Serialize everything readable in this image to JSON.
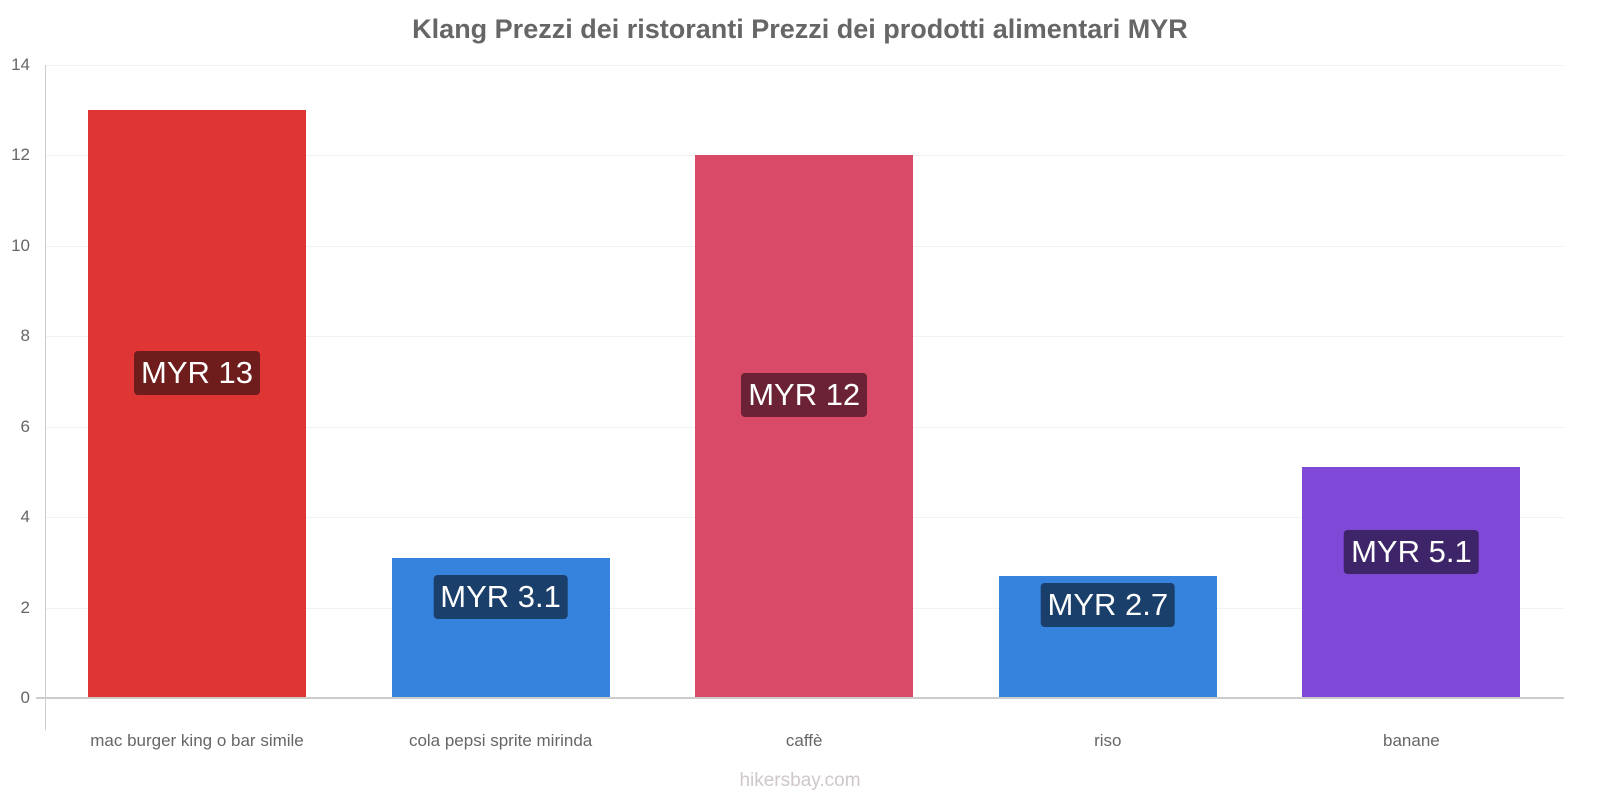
{
  "title": "Klang Prezzi dei ristoranti Prezzi dei prodotti alimentari MYR",
  "watermark": "hikersbay.com",
  "y_ticks": [
    "0",
    "2",
    "4",
    "6",
    "8",
    "10",
    "12",
    "14"
  ],
  "bars": [
    {
      "category": "mac burger king o bar simile",
      "value": 13,
      "label": "MYR 13",
      "color": "#e03535",
      "label_bg": "#6e1c1c"
    },
    {
      "category": "cola pepsi sprite mirinda",
      "value": 3.1,
      "label": "MYR 3.1",
      "color": "#3683dd",
      "label_bg": "#1b3f6b"
    },
    {
      "category": "caffè",
      "value": 12,
      "label": "MYR 12",
      "color": "#d94a68",
      "label_bg": "#6b2235"
    },
    {
      "category": "riso",
      "value": 2.7,
      "label": "MYR 2.7",
      "color": "#3683dd",
      "label_bg": "#1b3f6b"
    },
    {
      "category": "banane",
      "value": 5.1,
      "label": "MYR 5.1",
      "color": "#8048d6",
      "label_bg": "#3e2468"
    }
  ],
  "chart_data": {
    "type": "bar",
    "title": "Klang Prezzi dei ristoranti Prezzi dei prodotti alimentari MYR",
    "categories": [
      "mac burger king o bar simile",
      "cola pepsi sprite mirinda",
      "caffè",
      "riso",
      "banane"
    ],
    "values": [
      13,
      3.1,
      12,
      2.7,
      5.1
    ],
    "data_labels": [
      "MYR 13",
      "MYR 3.1",
      "MYR 12",
      "MYR 2.7",
      "MYR 5.1"
    ],
    "colors": [
      "#e03535",
      "#3683dd",
      "#d94a68",
      "#3683dd",
      "#8048d6"
    ],
    "xlabel": "",
    "ylabel": "",
    "ylim": [
      0,
      14
    ],
    "yticks": [
      0,
      2,
      4,
      6,
      8,
      10,
      12,
      14
    ],
    "grid": true,
    "legend": "none"
  }
}
